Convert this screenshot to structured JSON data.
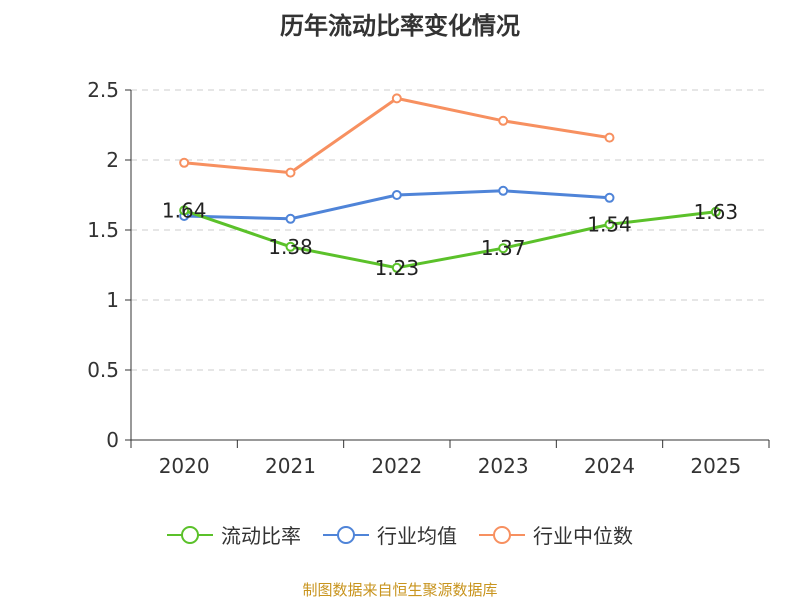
{
  "chart_data": {
    "type": "line",
    "title": "历年流动比率变化情况",
    "categories": [
      "2020",
      "2021",
      "2022",
      "2023",
      "2024",
      "2025"
    ],
    "ylim": [
      0,
      2.5
    ],
    "yticks": [
      "0",
      "0.5",
      "1",
      "1.5",
      "2",
      "2.5"
    ],
    "ytick_values": [
      0,
      0.5,
      1,
      1.5,
      2,
      2.5
    ],
    "grid": true,
    "legend_position": "bottom",
    "series": [
      {
        "name": "流动比率",
        "color": "#5bc12a",
        "values": [
          1.64,
          1.38,
          1.23,
          1.37,
          1.54,
          1.63
        ],
        "labels": [
          "1.64",
          "1.38",
          "1.23",
          "1.37",
          "1.54",
          "1.63"
        ]
      },
      {
        "name": "行业均值",
        "color": "#4f84d8",
        "values": [
          1.6,
          1.58,
          1.75,
          1.78,
          1.73,
          null
        ]
      },
      {
        "name": "行业中位数",
        "color": "#f79060",
        "values": [
          1.98,
          1.91,
          2.44,
          2.28,
          2.16,
          null
        ]
      }
    ]
  },
  "footer": "制图数据来自恒生聚源数据库"
}
